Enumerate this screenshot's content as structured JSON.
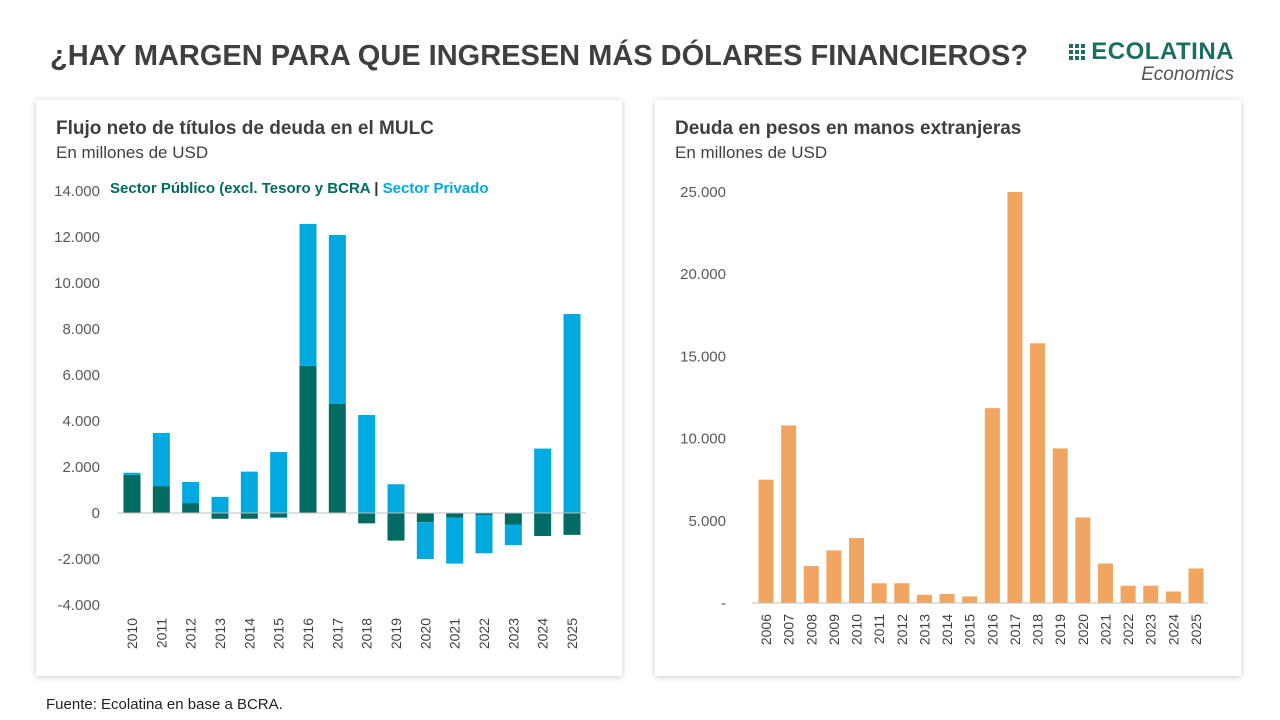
{
  "title": "¿HAY MARGEN PARA QUE INGRESEN MÁS DÓLARES FINANCIEROS?",
  "logo": {
    "name": "ECOLATINA",
    "sub": "Economics"
  },
  "source": "Fuente: Ecolatina en base a BCRA.",
  "colors": {
    "public": "#006b63",
    "private": "#00a9e0",
    "orange": "#f0a660"
  },
  "chart_data": [
    {
      "type": "bar",
      "stacked": true,
      "title": "Flujo neto de títulos de deuda en el MULC",
      "subtitle": "En millones de USD",
      "legend": {
        "public": "Sector Público (excl. Tesoro y BCRA",
        "separator": "|",
        "private": "Sector Privado"
      },
      "categories": [
        "2010",
        "2011",
        "2012",
        "2013",
        "2014",
        "2015",
        "2016",
        "2017",
        "2018",
        "2019",
        "2020",
        "2021",
        "2022",
        "2023",
        "2024",
        "2025"
      ],
      "series": [
        {
          "name": "Sector Público (excl. Tesoro y BCRA)",
          "values": [
            1650,
            1170,
            430,
            -250,
            -250,
            -200,
            6400,
            4740,
            -450,
            -1200,
            -400,
            -200,
            -100,
            -500,
            -1000,
            -950
          ]
        },
        {
          "name": "Sector Privado",
          "values": [
            100,
            2310,
            920,
            700,
            1800,
            2650,
            6170,
            7350,
            4260,
            1250,
            -1600,
            -2000,
            -1650,
            -900,
            2800,
            8650
          ]
        }
      ],
      "ylim": [
        -4000,
        14000
      ],
      "yticks": [
        -4000,
        -2000,
        0,
        2000,
        4000,
        6000,
        8000,
        10000,
        12000,
        14000
      ],
      "ytick_labels": [
        "-4.000",
        "-2.000",
        "0",
        "2.000",
        "4.000",
        "6.000",
        "8.000",
        "10.000",
        "12.000",
        "14.000"
      ]
    },
    {
      "type": "bar",
      "title": "Deuda en pesos en manos extranjeras",
      "subtitle": "En millones de USD",
      "categories": [
        "2006",
        "2007",
        "2008",
        "2009",
        "2010",
        "2011",
        "2012",
        "2013",
        "2014",
        "2015",
        "2016",
        "2017",
        "2018",
        "2019",
        "2020",
        "2021",
        "2022",
        "2023",
        "2024",
        "2025"
      ],
      "values": [
        7500,
        10800,
        2250,
        3200,
        3950,
        1200,
        1200,
        500,
        550,
        400,
        11850,
        25000,
        15800,
        9400,
        5200,
        2400,
        1050,
        1050,
        700,
        2100
      ],
      "ylim": [
        0,
        25000
      ],
      "yticks": [
        0,
        5000,
        10000,
        15000,
        20000,
        25000
      ],
      "ytick_labels": [
        "-",
        "5.000",
        "10.000",
        "15.000",
        "20.000",
        "25.000"
      ]
    }
  ]
}
